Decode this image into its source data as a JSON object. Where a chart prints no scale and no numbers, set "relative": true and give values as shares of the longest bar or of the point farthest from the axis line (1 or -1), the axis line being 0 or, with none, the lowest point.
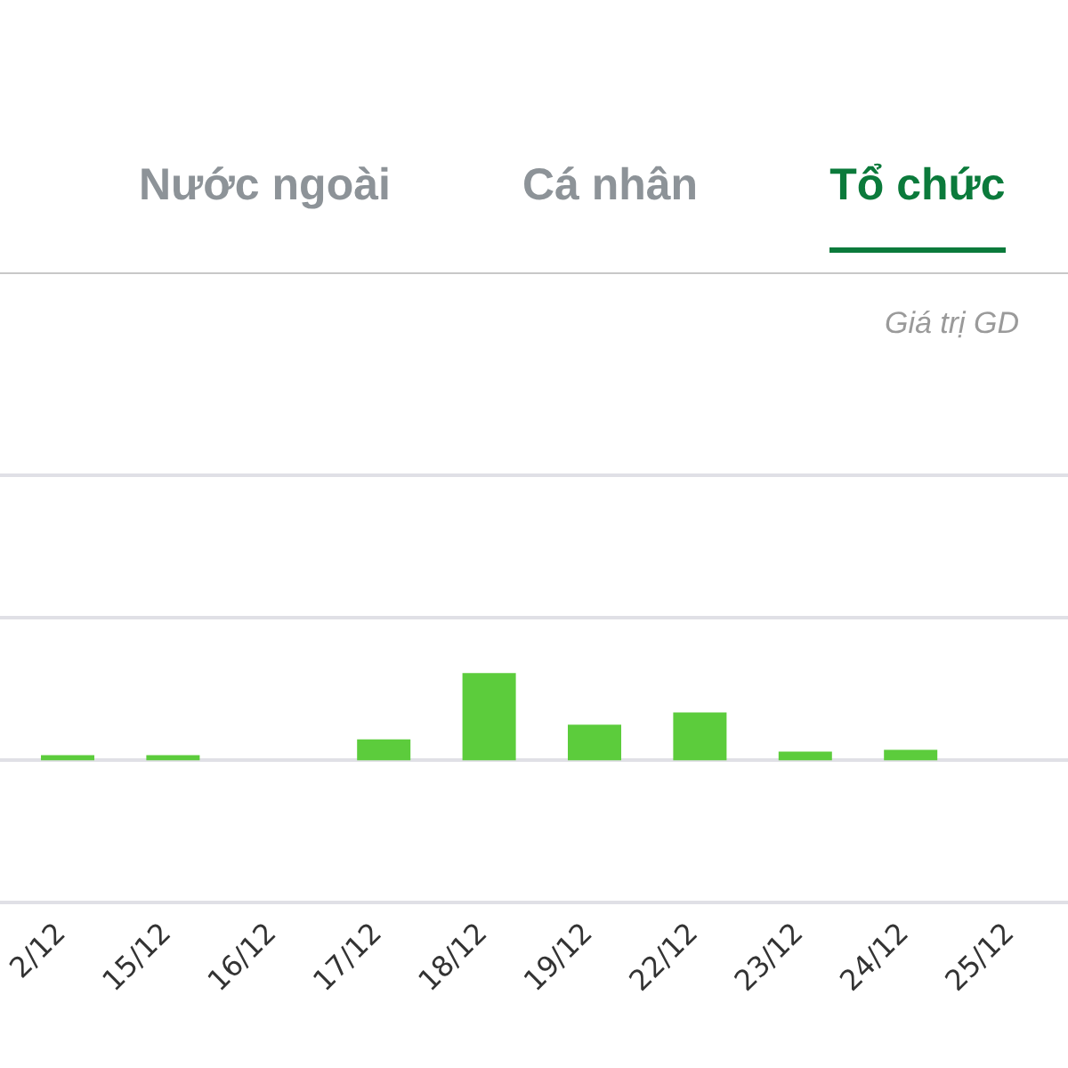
{
  "chart_data": {
    "type": "bar",
    "relative": true,
    "categories": [
      "2/12",
      "15/12",
      "16/12",
      "17/12",
      "18/12",
      "19/12",
      "22/12",
      "23/12",
      "24/12",
      "25/12"
    ],
    "values": [
      0.06,
      0.06,
      0,
      0.24,
      1,
      0.41,
      0.55,
      0.1,
      0.12,
      null
    ],
    "color": "#5ccc3c",
    "annotations": [
      "Nước ngoài",
      "Cá nhân",
      "Tổ chức",
      "Giá trị GD"
    ]
  }
}
